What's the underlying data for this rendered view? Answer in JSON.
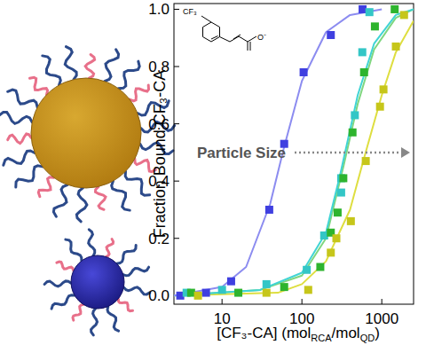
{
  "chart_data": {
    "type": "scatter",
    "xlabel": [
      "[CF₃-CA] (mol",
      "RCA",
      "/mol",
      "QD",
      ")"
    ],
    "ylabel": "Fraction Bound CF₃-CA",
    "annotations": [
      "Particle Size"
    ],
    "inset_labels": [
      "CF₃",
      "O⁻"
    ],
    "log": "x",
    "xlim": [
      2.5,
      2500
    ],
    "xticks": [
      10,
      100,
      1000
    ],
    "ylim": [
      -0.03,
      1.02
    ],
    "yticks": [
      {
        "value": 0,
        "label": "0.0"
      },
      {
        "value": 0.2,
        "label": "0.2"
      },
      {
        "value": 0.4,
        "label": "0.4"
      },
      {
        "value": 0.6,
        "label": "0.6"
      },
      {
        "value": 0.8,
        "label": "0.8"
      },
      {
        "value": 1,
        "label": "1.0"
      }
    ],
    "series": [
      {
        "type": "scatter",
        "marker": "square",
        "color": "#3f3fe0",
        "x": [
          3,
          6.3,
          13,
          39,
          60,
          105,
          230,
          575
        ],
        "values": [
          0.0,
          0.01,
          0.05,
          0.3,
          0.53,
          0.78,
          0.91,
          1.0
        ]
      },
      {
        "type": "scatter",
        "marker": "square",
        "color": "#33c6c6",
        "x": [
          3.6,
          10,
          36,
          115,
          190,
          310,
          310,
          460,
          570,
          700
        ],
        "values": [
          0.01,
          0.02,
          0.04,
          0.09,
          0.21,
          0.36,
          0.41,
          0.63,
          0.85,
          0.99
        ]
      },
      {
        "type": "scatter",
        "marker": "square",
        "color": "#2eb42e",
        "x": [
          4.1,
          16,
          60,
          170,
          230,
          280,
          330,
          430,
          600,
          820,
          1450
        ],
        "values": [
          0.01,
          0.01,
          0.03,
          0.1,
          0.22,
          0.29,
          0.41,
          0.57,
          0.78,
          0.94,
          1.0
        ]
      },
      {
        "type": "scatter",
        "marker": "square",
        "color": "#c6c61a",
        "x": [
          5,
          36,
          120,
          230,
          270,
          410,
          630,
          950,
          1050,
          1500,
          1900
        ],
        "values": [
          0.0,
          0.01,
          0.02,
          0.15,
          0.2,
          0.26,
          0.47,
          0.66,
          0.72,
          0.87,
          0.98
        ]
      },
      {
        "type": "line",
        "line_style": "solid",
        "color": "#8c8cf0",
        "x": [
          2.5,
          10,
          20,
          40,
          60,
          100,
          200,
          400,
          1000
        ],
        "values": [
          0.0,
          0.03,
          0.1,
          0.32,
          0.52,
          0.75,
          0.92,
          0.98,
          1.0
        ]
      },
      {
        "type": "line",
        "line_style": "solid",
        "color": "#40d4d4",
        "x": [
          2.5,
          30,
          100,
          200,
          300,
          500,
          800,
          1500,
          2500
        ],
        "values": [
          0.0,
          0.02,
          0.08,
          0.22,
          0.42,
          0.7,
          0.88,
          0.98,
          1.0
        ]
      },
      {
        "type": "line",
        "line_style": "solid",
        "color": "#7fd67f",
        "x": [
          2.5,
          30,
          100,
          200,
          330,
          500,
          800,
          1500,
          2500
        ],
        "values": [
          0.0,
          0.02,
          0.07,
          0.2,
          0.45,
          0.67,
          0.86,
          0.97,
          1.0
        ]
      },
      {
        "type": "line",
        "line_style": "solid",
        "color": "#dede40",
        "x": [
          2.5,
          50,
          100,
          200,
          400,
          600,
          1000,
          1500,
          2500
        ],
        "values": [
          0.0,
          0.01,
          0.04,
          0.12,
          0.3,
          0.48,
          0.7,
          0.85,
          0.96
        ]
      }
    ]
  }
}
